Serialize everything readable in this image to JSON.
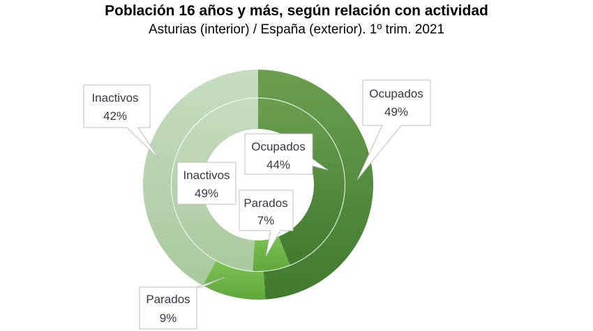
{
  "title": "Población 16 años y más, según relación con actividad",
  "subtitle": "Asturias (interior) / España (exterior). 1º trim. 2021",
  "chart_data": [
    {
      "type": "pie",
      "ring": "outer",
      "region": "España",
      "categories": [
        "Ocupados",
        "Parados",
        "Inactivos"
      ],
      "values": [
        49,
        9,
        42
      ],
      "colors": [
        "#5a9440",
        "#6fb548",
        "#b8d4ae"
      ]
    },
    {
      "type": "pie",
      "ring": "inner",
      "region": "Asturias",
      "categories": [
        "Ocupados",
        "Parados",
        "Inactivos"
      ],
      "values": [
        44,
        7,
        49
      ],
      "colors": [
        "#5a9440",
        "#6fb548",
        "#b8d4ae"
      ]
    }
  ],
  "labels": {
    "outer_ocupados": {
      "name": "Ocupados",
      "value": "49%"
    },
    "outer_parados": {
      "name": "Parados",
      "value": "9%"
    },
    "outer_inactivos": {
      "name": "Inactivos",
      "value": "42%"
    },
    "inner_ocupados": {
      "name": "Ocupados",
      "value": "44%"
    },
    "inner_parados": {
      "name": "Parados",
      "value": "7%"
    },
    "inner_inactivos": {
      "name": "Inactivos",
      "value": "49%"
    }
  }
}
